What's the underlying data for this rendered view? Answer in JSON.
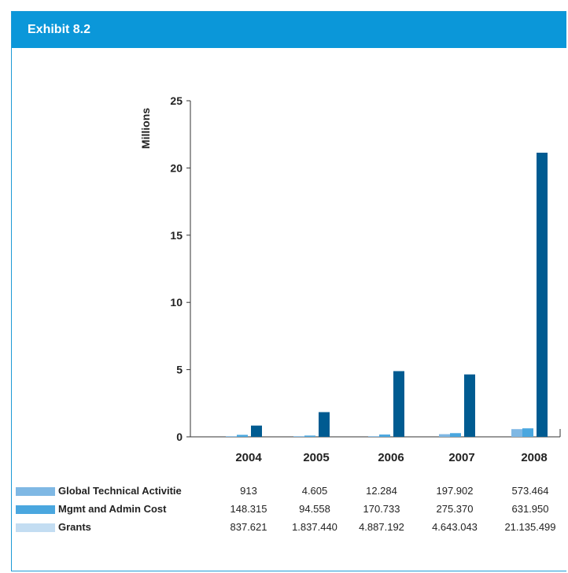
{
  "header": {
    "title": "Exhibit 8.2"
  },
  "colors": {
    "header_bg": "#0b97d9",
    "frame": "#1e9ad6",
    "global_technical": "#7fb8e4",
    "mgmt_admin": "#4aa7df",
    "grants_legend": "#c3ddf2",
    "grants_bar": "#005b91",
    "axis": "#333333"
  },
  "chart_data": {
    "type": "bar",
    "ylabel": "Millions",
    "ylim": [
      0,
      25
    ],
    "yticks": [
      "0",
      "5",
      "10",
      "15",
      "20",
      "25"
    ],
    "categories": [
      "2004",
      "2005",
      "2006",
      "2007",
      "2008"
    ],
    "series": [
      {
        "name": "Global Technical Activitie",
        "values": [
          0.000913,
          0.004605,
          0.012284,
          0.197902,
          0.573464
        ],
        "labels": [
          "913",
          "4.605",
          "12.284",
          "197.902",
          "573.464"
        ]
      },
      {
        "name": "Mgmt and Admin Cost",
        "values": [
          0.148315,
          0.094558,
          0.170733,
          0.27537,
          0.63195
        ],
        "labels": [
          "148.315",
          "94.558",
          "170.733",
          "275.370",
          "631.950"
        ]
      },
      {
        "name": "Grants",
        "values": [
          0.837621,
          1.83744,
          4.887192,
          4.643043,
          21.135499
        ],
        "labels": [
          "837.621",
          "1.837.440",
          "4.887.192",
          "4.643.043",
          "21.135.499"
        ]
      }
    ]
  }
}
